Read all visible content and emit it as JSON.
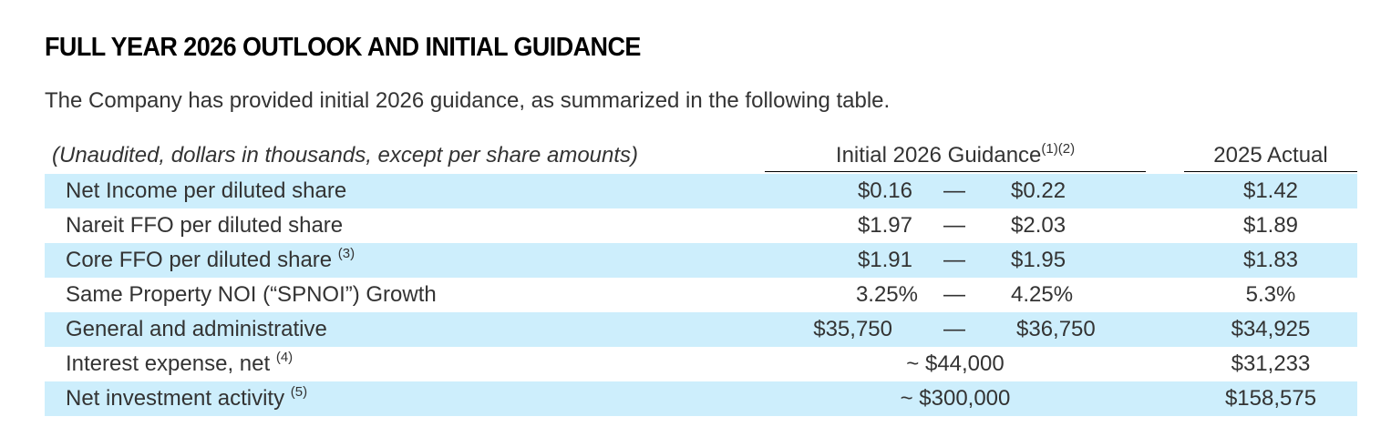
{
  "title": "FULL YEAR 2026 OUTLOOK AND INITIAL GUIDANCE",
  "intro": "The Company has provided initial 2026 guidance, as summarized in the following table.",
  "table": {
    "note": "(Unaudited, dollars in thousands, except per share amounts)",
    "guidance_header": "Initial 2026 Guidance",
    "guidance_footnotes": "(1)(2)",
    "actual_header": "2025 Actual",
    "dash": "—",
    "rows": [
      {
        "label": "Net Income per diluted share",
        "footnote": "",
        "low": "$0.16",
        "high": "$0.22",
        "approx": "",
        "actual": "$1.42"
      },
      {
        "label": "Nareit FFO per diluted share",
        "footnote": "",
        "low": "$1.97",
        "high": "$2.03",
        "approx": "",
        "actual": "$1.89"
      },
      {
        "label": "Core FFO per diluted share",
        "footnote": "(3)",
        "low": "$1.91",
        "high": "$1.95",
        "approx": "",
        "actual": "$1.83"
      },
      {
        "label": "Same Property NOI (“SPNOI”) Growth",
        "footnote": "",
        "low": "3.25%",
        "high": "4.25%",
        "approx": "",
        "actual": "5.3%"
      },
      {
        "label": "General and administrative",
        "footnote": "",
        "low": "$35,750",
        "high": "$36,750",
        "approx": "",
        "actual": "$34,925"
      },
      {
        "label": "Interest expense, net",
        "footnote": "(4)",
        "low": "",
        "high": "",
        "approx": "~ $44,000",
        "actual": "$31,233"
      },
      {
        "label": "Net investment activity",
        "footnote": "(5)",
        "low": "",
        "high": "",
        "approx": "~ $300,000",
        "actual": "$158,575"
      }
    ]
  },
  "colors": {
    "row_shade": "#cdeefc"
  }
}
